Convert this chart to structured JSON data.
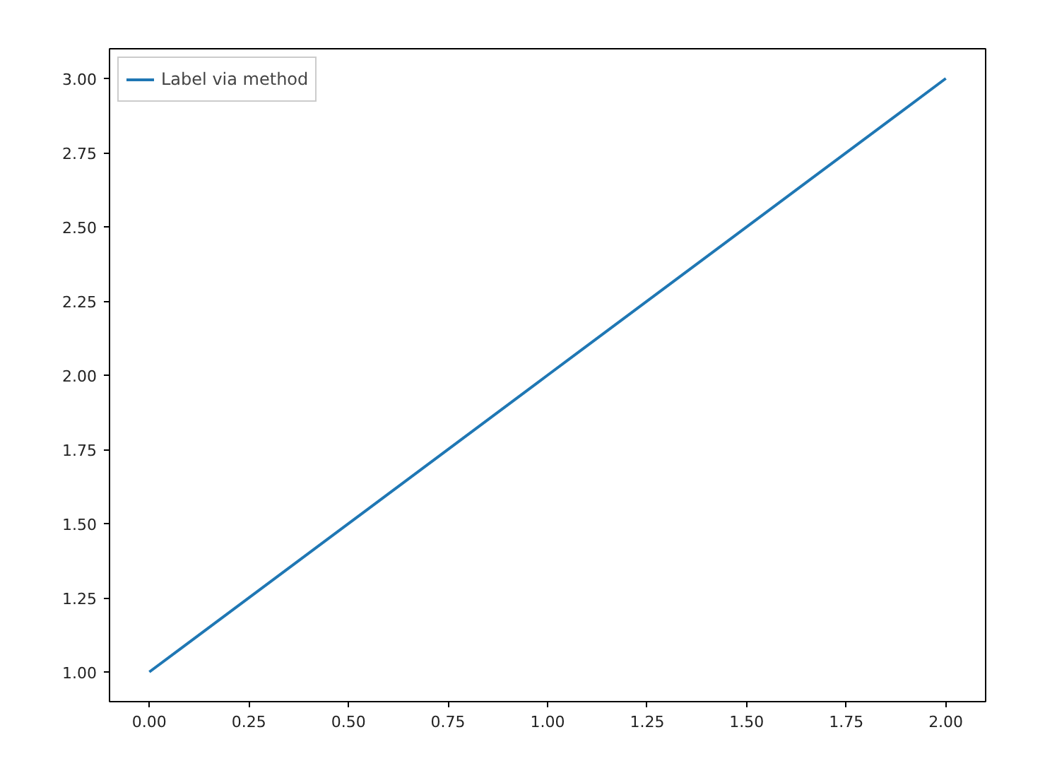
{
  "chart_data": {
    "type": "line",
    "x": [
      0,
      1,
      2
    ],
    "series": [
      {
        "name": "Label via method",
        "color": "#1f77b4",
        "values": [
          1,
          2,
          3
        ]
      }
    ],
    "xlim": [
      -0.1,
      2.1
    ],
    "ylim": [
      0.9,
      3.1
    ],
    "xticks": [
      {
        "value": 0,
        "label": "0.00"
      },
      {
        "value": 0.25,
        "label": "0.25"
      },
      {
        "value": 0.5,
        "label": "0.50"
      },
      {
        "value": 0.75,
        "label": "0.75"
      },
      {
        "value": 1,
        "label": "1.00"
      },
      {
        "value": 1.25,
        "label": "1.25"
      },
      {
        "value": 1.5,
        "label": "1.50"
      },
      {
        "value": 1.75,
        "label": "1.75"
      },
      {
        "value": 2,
        "label": "2.00"
      }
    ],
    "yticks": [
      {
        "value": 1,
        "label": "1.00"
      },
      {
        "value": 1.25,
        "label": "1.25"
      },
      {
        "value": 1.5,
        "label": "1.50"
      },
      {
        "value": 1.75,
        "label": "1.75"
      },
      {
        "value": 2,
        "label": "2.00"
      },
      {
        "value": 2.25,
        "label": "2.25"
      },
      {
        "value": 2.5,
        "label": "2.50"
      },
      {
        "value": 2.75,
        "label": "2.75"
      },
      {
        "value": 3,
        "label": "3.00"
      }
    ],
    "grid": false,
    "legend": "top left"
  }
}
